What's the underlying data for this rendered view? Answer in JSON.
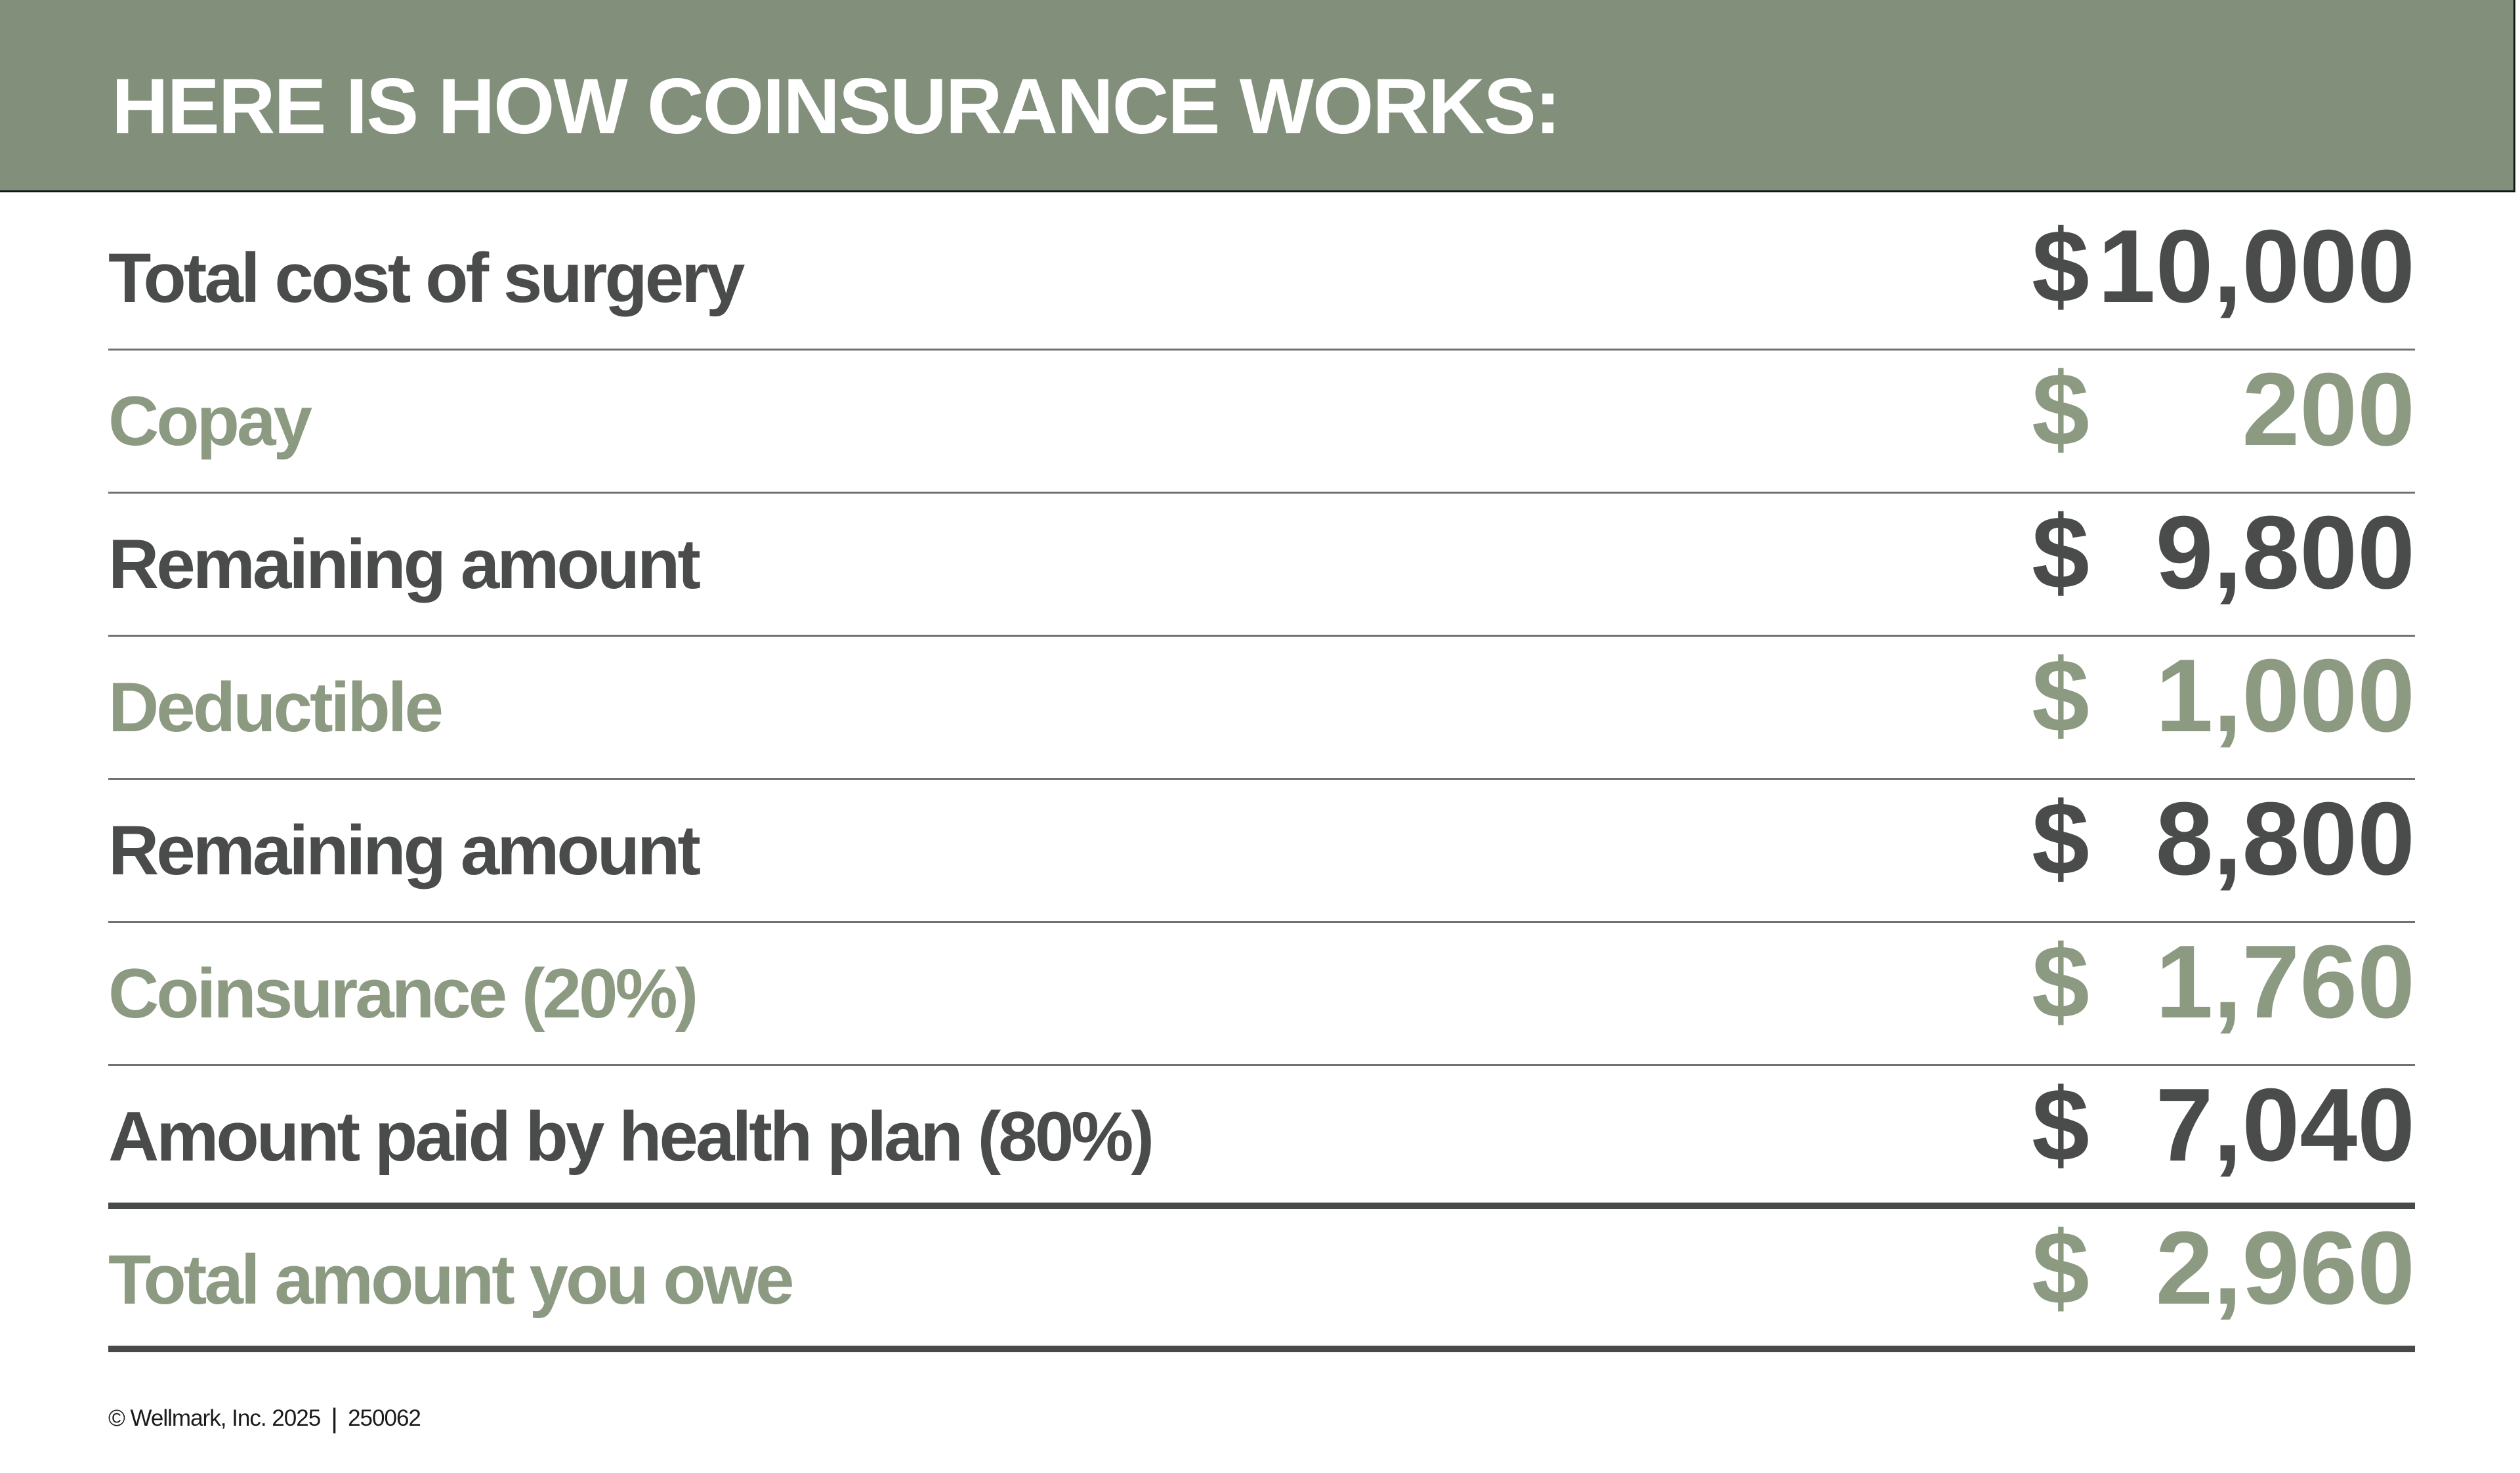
{
  "header": {
    "title": "HERE IS HOW COINSURANCE WORKS:"
  },
  "table": {
    "currency_symbol": "$",
    "rows": [
      {
        "label": "Total cost of surgery",
        "amount": "10,000",
        "emphasis": "dark",
        "separator": "thin"
      },
      {
        "label": "Copay",
        "amount": "200",
        "emphasis": "green",
        "separator": "thin"
      },
      {
        "label": "Remaining amount",
        "amount": "9,800",
        "emphasis": "dark",
        "separator": "thin"
      },
      {
        "label": "Deductible",
        "amount": "1,000",
        "emphasis": "green",
        "separator": "thin"
      },
      {
        "label": "Remaining amount",
        "amount": "8,800",
        "emphasis": "dark",
        "separator": "thin"
      },
      {
        "label": "Coinsurance (20%)",
        "amount": "1,760",
        "emphasis": "green",
        "separator": "thin"
      },
      {
        "label": "Amount paid by health plan (80%)",
        "amount": "7,040",
        "emphasis": "dark",
        "separator": "thick"
      },
      {
        "label": "Total amount you owe",
        "amount": "2,960",
        "emphasis": "green",
        "separator": "thick"
      }
    ]
  },
  "footer": {
    "copyright": "© Wellmark, Inc. 2025",
    "divider": "|",
    "code": "250062"
  },
  "colors": {
    "band_green": "#82907B",
    "text_green": "#8C9A82",
    "text_dark": "#4A4C4B",
    "separator_gray": "#6F7271",
    "title_white": "#FFFFFF"
  }
}
